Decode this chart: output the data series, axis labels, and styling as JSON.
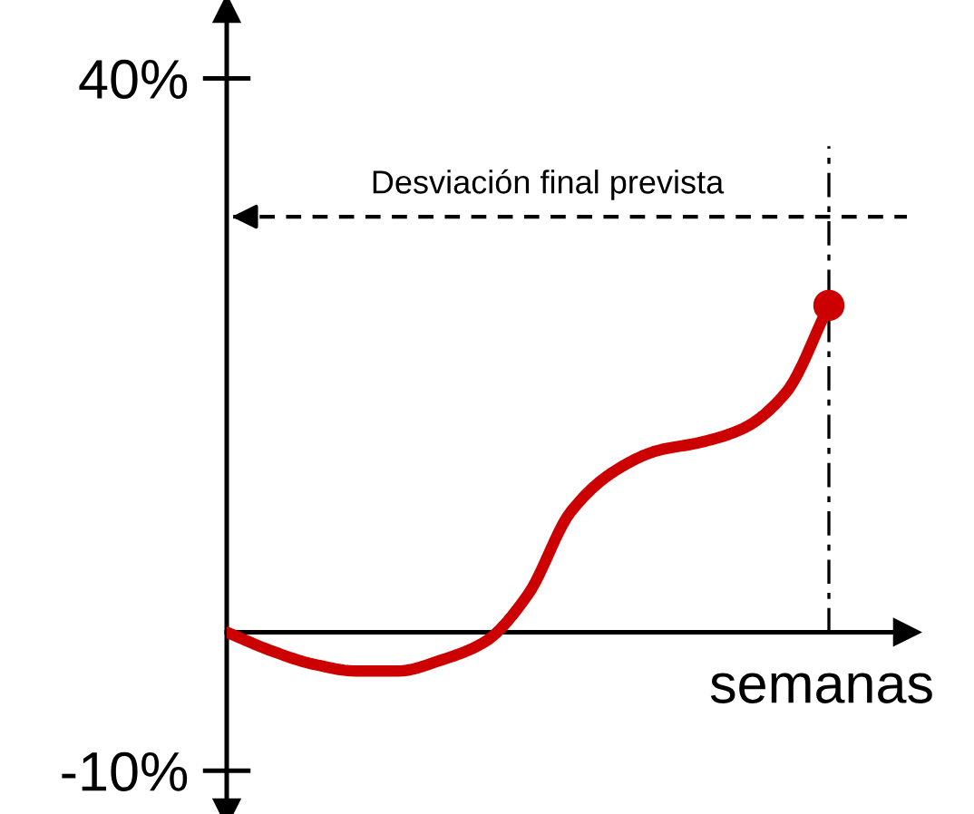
{
  "chart_data": {
    "type": "line",
    "xlabel": "semanas",
    "categories": [
      null,
      null,
      null,
      null,
      null,
      null,
      null,
      null,
      null,
      null,
      null,
      null,
      null,
      null,
      null
    ],
    "series": [
      {
        "color": "#cc0000",
        "values": [
          0,
          -1.3,
          -2.3,
          -2.8,
          -2.8,
          -2,
          -0.7,
          2.7,
          8.7,
          11.6,
          13.1,
          13.7,
          14.7,
          17.3,
          23.6
        ],
        "marker": "none"
      },
      {
        "type": "scatter",
        "color": "#cc0000",
        "values": [
          null,
          null,
          null,
          null,
          null,
          null,
          null,
          null,
          null,
          null,
          null,
          null,
          null,
          null,
          23.6
        ],
        "marker": "circle"
      }
    ],
    "ylim": [
      -13,
      45
    ],
    "yticks": [
      {
        "value": 40,
        "label": "40%"
      },
      {
        "value": -10,
        "label": "-10%"
      }
    ],
    "ref_lines": [
      {
        "axis": "y",
        "value": 30,
        "label": "Desviación final prevista",
        "line_style": "dashed",
        "color": "#000000"
      }
    ],
    "tick_labels": "y",
    "grid": false,
    "legend": false
  }
}
